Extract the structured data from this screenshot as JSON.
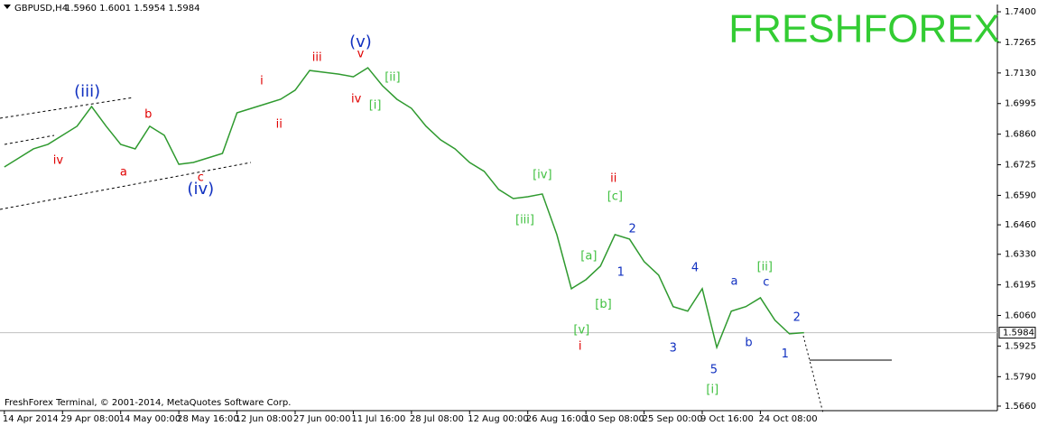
{
  "chart_data": {
    "type": "line",
    "title": "GBPUSD,H4",
    "ohlc_label": "1.5960 1.6001 1.5954 1.5984",
    "logo": "FRESHFOREX",
    "footer": "FreshForex Terminal, © 2001-2014, MetaQuotes Software Corp.",
    "x": [
      0,
      1,
      2,
      3,
      4,
      5,
      6,
      7,
      8,
      9,
      10,
      11,
      12,
      13,
      14,
      15,
      16,
      17,
      18,
      19,
      20,
      21,
      22,
      23,
      24,
      25,
      26,
      27,
      28,
      29,
      30,
      31,
      32,
      33,
      34,
      35,
      36,
      37,
      38,
      39,
      40,
      41,
      42,
      43,
      44,
      45,
      46,
      47,
      48,
      49,
      50,
      51,
      52,
      53,
      54,
      55
    ],
    "series": [
      {
        "name": "GBPUSD",
        "color": "#2f9a2f",
        "values": [
          1.6715,
          1.6755,
          1.6795,
          1.6815,
          1.6855,
          1.6895,
          1.6982,
          1.6895,
          1.6815,
          1.6795,
          1.6895,
          1.6855,
          1.6727,
          1.6735,
          1.6755,
          1.6775,
          1.6954,
          1.6974,
          1.6994,
          1.7014,
          1.7054,
          1.7141,
          1.7133,
          1.7125,
          1.7113,
          1.7153,
          1.7074,
          1.7014,
          1.6974,
          1.6895,
          1.6835,
          1.6795,
          1.6735,
          1.6696,
          1.6616,
          1.6576,
          1.6584,
          1.6596,
          1.6417,
          1.6178,
          1.6218,
          1.6278,
          1.6417,
          1.6397,
          1.6298,
          1.6238,
          1.6099,
          1.6079,
          1.6178,
          1.5919,
          1.6079,
          1.6099,
          1.6138,
          1.6039,
          1.5979,
          1.5984
        ]
      }
    ],
    "last_price": {
      "value": 1.5984,
      "label": "1.5984"
    },
    "xlim": [
      -0.3,
      68.3
    ],
    "xticks": [
      {
        "value": 0,
        "label": "14 Apr 2014"
      },
      {
        "value": 4,
        "label": "29 Apr 08:00"
      },
      {
        "value": 8,
        "label": "14 May 00:00"
      },
      {
        "value": 12,
        "label": "28 May 16:00"
      },
      {
        "value": 16,
        "label": "12 Jun 08:00"
      },
      {
        "value": 20,
        "label": "27 Jun 00:00"
      },
      {
        "value": 24,
        "label": "11 Jul 16:00"
      },
      {
        "value": 28,
        "label": "28 Jul 08:00"
      },
      {
        "value": 32,
        "label": "12 Aug 00:00"
      },
      {
        "value": 36,
        "label": "26 Aug 16:00"
      },
      {
        "value": 40,
        "label": "10 Sep 08:00"
      },
      {
        "value": 44,
        "label": "25 Sep 00:00"
      },
      {
        "value": 48,
        "label": "9 Oct 16:00"
      },
      {
        "value": 52,
        "label": "24 Oct 08:00"
      }
    ],
    "ylim": [
      1.564,
      1.7432
    ],
    "yticks": [
      {
        "value": 1.74,
        "label": "1.7400"
      },
      {
        "value": 1.7265,
        "label": "1.7265"
      },
      {
        "value": 1.713,
        "label": "1.7130"
      },
      {
        "value": 1.6995,
        "label": "1.6995"
      },
      {
        "value": 1.686,
        "label": "1.6860"
      },
      {
        "value": 1.6725,
        "label": "1.6725"
      },
      {
        "value": 1.659,
        "label": "1.6590"
      },
      {
        "value": 1.646,
        "label": "1.6460"
      },
      {
        "value": 1.633,
        "label": "1.6330"
      },
      {
        "value": 1.6195,
        "label": "1.6195"
      },
      {
        "value": 1.606,
        "label": "1.6060"
      },
      {
        "value": 1.5925,
        "label": "1.5925"
      },
      {
        "value": 1.579,
        "label": "1.5790"
      },
      {
        "value": 1.566,
        "label": "1.5660"
      }
    ],
    "annotations": [
      {
        "text": "(iii)",
        "x": 5.7,
        "y": 1.7046,
        "color": "#1030c0"
      },
      {
        "text": "iv",
        "x": 3.7,
        "y": 1.6743,
        "color": "#e00000"
      },
      {
        "text": "a",
        "x": 8.2,
        "y": 1.6692,
        "color": "#e00000"
      },
      {
        "text": "b",
        "x": 9.9,
        "y": 1.6946,
        "color": "#e00000"
      },
      {
        "text": "c",
        "x": 13.5,
        "y": 1.6668,
        "color": "#e00000"
      },
      {
        "text": "(iv)",
        "x": 13.5,
        "y": 1.6616,
        "color": "#1030c0"
      },
      {
        "text": "i",
        "x": 17.7,
        "y": 1.7094,
        "color": "#e00000"
      },
      {
        "text": "ii",
        "x": 18.9,
        "y": 1.6902,
        "color": "#e00000"
      },
      {
        "text": "iii",
        "x": 21.5,
        "y": 1.7197,
        "color": "#e00000"
      },
      {
        "text": "(v)",
        "x": 24.5,
        "y": 1.7265,
        "color": "#1030c0"
      },
      {
        "text": "v",
        "x": 24.5,
        "y": 1.7213,
        "color": "#e00000"
      },
      {
        "text": "iv",
        "x": 24.2,
        "y": 1.7014,
        "color": "#e00000"
      },
      {
        "text": "[ii]",
        "x": 26.7,
        "y": 1.7109,
        "color": "#40c040"
      },
      {
        "text": "[i]",
        "x": 25.5,
        "y": 1.6986,
        "color": "#40c040"
      },
      {
        "text": "[iv]",
        "x": 37,
        "y": 1.668,
        "color": "#40c040"
      },
      {
        "text": "[iii]",
        "x": 35.8,
        "y": 1.6481,
        "color": "#40c040"
      },
      {
        "text": "ii",
        "x": 41.9,
        "y": 1.6664,
        "color": "#e00000"
      },
      {
        "text": "[c]",
        "x": 42,
        "y": 1.6584,
        "color": "#40c040"
      },
      {
        "text": "[a]",
        "x": 40.2,
        "y": 1.6321,
        "color": "#40c040"
      },
      {
        "text": "[b]",
        "x": 41.2,
        "y": 1.6107,
        "color": "#40c040"
      },
      {
        "text": "2",
        "x": 43.2,
        "y": 1.6441,
        "color": "#1030c0"
      },
      {
        "text": "1",
        "x": 42.4,
        "y": 1.625,
        "color": "#1030c0"
      },
      {
        "text": "[v]",
        "x": 39.7,
        "y": 1.5995,
        "color": "#40c040"
      },
      {
        "text": "i",
        "x": 39.6,
        "y": 1.5923,
        "color": "#e00000"
      },
      {
        "text": "3",
        "x": 46,
        "y": 1.5915,
        "color": "#1030c0"
      },
      {
        "text": "4",
        "x": 47.5,
        "y": 1.627,
        "color": "#1030c0"
      },
      {
        "text": "5",
        "x": 48.8,
        "y": 1.582,
        "color": "#1030c0"
      },
      {
        "text": "[i]",
        "x": 48.7,
        "y": 1.5732,
        "color": "#40c040"
      },
      {
        "text": "a",
        "x": 50.2,
        "y": 1.621,
        "color": "#1030c0"
      },
      {
        "text": "b",
        "x": 51.2,
        "y": 1.5939,
        "color": "#1030c0"
      },
      {
        "text": "c",
        "x": 52.4,
        "y": 1.6206,
        "color": "#1030c0"
      },
      {
        "text": "[ii]",
        "x": 52.3,
        "y": 1.6274,
        "color": "#40c040"
      },
      {
        "text": "2",
        "x": 54.5,
        "y": 1.6051,
        "color": "#1030c0"
      },
      {
        "text": "1",
        "x": 53.7,
        "y": 1.5888,
        "color": "#1030c0"
      }
    ]
  }
}
